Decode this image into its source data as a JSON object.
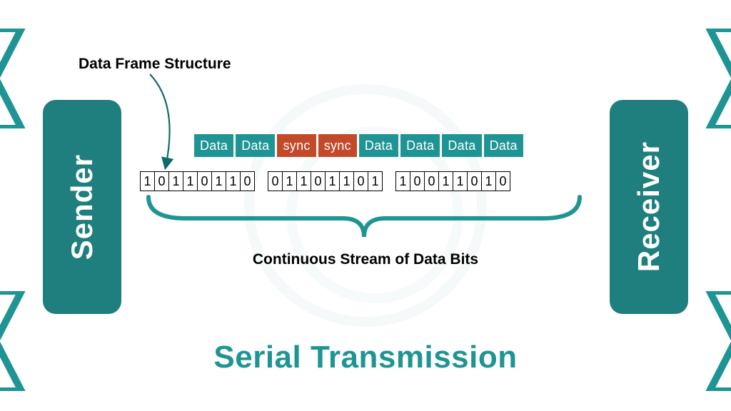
{
  "type": "network-diagram",
  "title": "Serial Transmission",
  "title_color": "#1f9494",
  "background_color": "#ffffff",
  "endpoints": {
    "sender": {
      "label": "Sender",
      "bg": "#1f7e7e"
    },
    "receiver": {
      "label": "Receiver",
      "bg": "#1f7e7e"
    }
  },
  "frame_label": "Data Frame Structure",
  "stream_label": "Continuous Stream of Data Bits",
  "frame_cells": [
    {
      "text": "Data",
      "bg": "#1f9494"
    },
    {
      "text": "Data",
      "bg": "#1f9494"
    },
    {
      "text": "sync",
      "bg": "#c2492a"
    },
    {
      "text": "sync",
      "bg": "#c2492a"
    },
    {
      "text": "Data",
      "bg": "#1f9494"
    },
    {
      "text": "Data",
      "bg": "#1f9494"
    },
    {
      "text": "Data",
      "bg": "#1f9494"
    },
    {
      "text": "Data",
      "bg": "#1f9494"
    }
  ],
  "bit_groups": [
    [
      "1",
      "0",
      "1",
      "1",
      "0",
      "1",
      "1",
      "0"
    ],
    [
      "0",
      "1",
      "1",
      "0",
      "1",
      "1",
      "0",
      "1"
    ],
    [
      "1",
      "0",
      "0",
      "1",
      "1",
      "0",
      "1",
      "0"
    ]
  ],
  "colors": {
    "arrow": "#0e6b6b",
    "brace": "#1f9494",
    "edge_deco": "#1f9494",
    "text_dark": "#000000"
  }
}
